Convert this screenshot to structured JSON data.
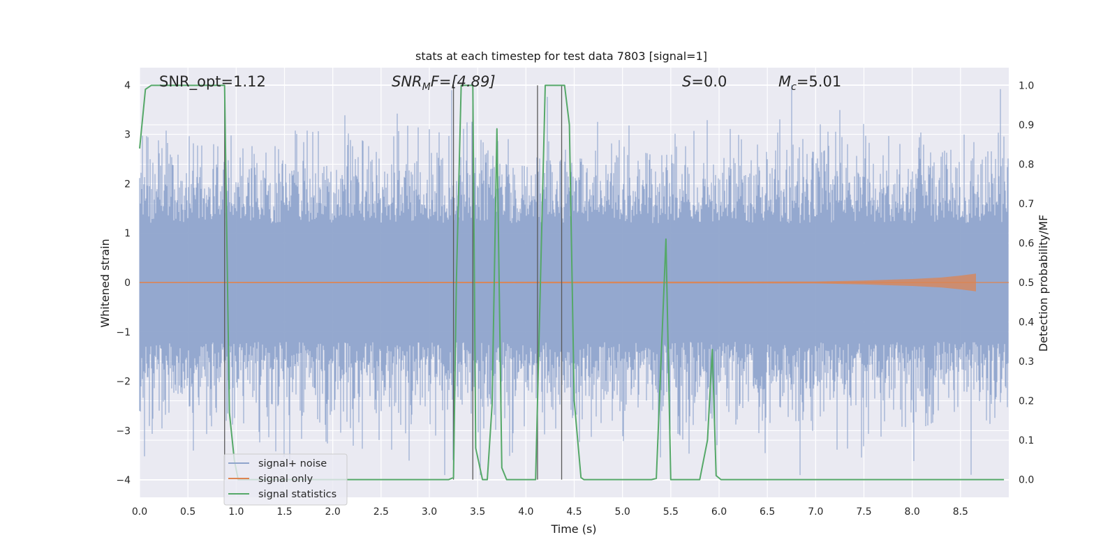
{
  "chart_data": {
    "type": "line",
    "title": "stats at each timestep for test data 7803 [signal=1]",
    "xlabel": "Time (s)",
    "ylabel_left": "Whitened strain",
    "ylabel_right": "Detection probability/MF",
    "xlim": [
      0,
      9.0
    ],
    "ylim_left": [
      -4.35,
      4.35
    ],
    "ylim_right": [
      -0.045,
      1.045
    ],
    "grid": true,
    "x_ticks": [
      "0.0",
      "0.5",
      "1.0",
      "1.5",
      "2.0",
      "2.5",
      "3.0",
      "3.5",
      "4.0",
      "4.5",
      "5.0",
      "5.5",
      "6.0",
      "6.5",
      "7.0",
      "7.5",
      "8.0",
      "8.5"
    ],
    "y_ticks_left": [
      "4",
      "3",
      "2",
      "1",
      "0",
      "−1",
      "−2",
      "−3",
      "−4"
    ],
    "y_ticks_right": [
      "1.0",
      "0.9",
      "0.8",
      "0.7",
      "0.6",
      "0.5",
      "0.4",
      "0.3",
      "0.2",
      "0.1",
      "0.0"
    ],
    "annotations": {
      "snr_opt": "SNR_opt=1.12",
      "snr_mf_main": "SNR",
      "snr_mf_sub": "M",
      "snr_mf_rest": "F=[4.89]",
      "s_main": "S",
      "s_rest": "=0.0",
      "mc_main": "M",
      "mc_sub": "c",
      "mc_rest": "=5.01"
    },
    "legend": {
      "position": "lower-left",
      "entries": [
        "signal+ noise",
        "signal only",
        "signal statistics"
      ]
    },
    "colors": {
      "noise": "#8fa4cc",
      "signal": "#dd8452",
      "stats": "#55a868",
      "vlines": "#595959",
      "background": "#eaeaf2",
      "grid": "#ffffff"
    },
    "series": [
      {
        "name": "signal+ noise",
        "axis": "left",
        "description_of_envelope_in_data_units": "noise band roughly between -2.5 and 2.5 with spikes up to ~4.0 and down to ~-3.9",
        "x_range": [
          0,
          9.0
        ]
      },
      {
        "name": "signal only",
        "axis": "left",
        "x": [
          0,
          7.0,
          7.5,
          8.0,
          8.3,
          8.5,
          8.66
        ],
        "y_amp": [
          0.01,
          0.02,
          0.04,
          0.07,
          0.1,
          0.14,
          0.18
        ]
      },
      {
        "name": "signal statistics",
        "axis": "right",
        "x": [
          0.0,
          0.06,
          0.12,
          0.2,
          0.5,
          0.8,
          0.88,
          0.93,
          0.98,
          1.02,
          1.05,
          1.5,
          2.0,
          2.5,
          3.0,
          3.2,
          3.25,
          3.28,
          3.33,
          3.45,
          3.48,
          3.55,
          3.6,
          3.65,
          3.7,
          3.75,
          3.8,
          3.9,
          4.1,
          4.15,
          4.2,
          4.3,
          4.4,
          4.45,
          4.5,
          4.57,
          4.6,
          4.8,
          5.0,
          5.2,
          5.3,
          5.35,
          5.45,
          5.5,
          5.55,
          5.65,
          5.8,
          5.88,
          5.93,
          5.97,
          6.02,
          6.06,
          6.2,
          7.0,
          8.0,
          8.95
        ],
        "y": [
          0.84,
          0.99,
          1.0,
          1.0,
          1.0,
          1.0,
          1.0,
          0.17,
          0.05,
          0.0,
          0.0,
          0.0,
          0.0,
          0.0,
          0.0,
          0.0,
          0.005,
          0.5,
          1.0,
          1.0,
          0.08,
          0.0,
          0.0,
          0.19,
          0.89,
          0.03,
          0.0,
          0.0,
          0.0,
          0.5,
          1.0,
          1.0,
          1.0,
          0.9,
          0.2,
          0.005,
          0.0,
          0.0,
          0.0,
          0.0,
          0.0,
          0.003,
          0.61,
          0.0,
          0.0,
          0.0,
          0.0,
          0.1,
          0.33,
          0.01,
          0.0,
          0.0,
          0.0,
          0.0,
          0.0,
          0.0
        ]
      }
    ],
    "vlines_x": [
      0.88,
      3.25,
      3.45,
      4.12,
      4.37
    ]
  }
}
